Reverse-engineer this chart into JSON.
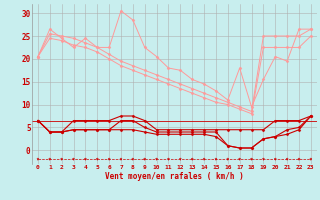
{
  "background_color": "#c8eeee",
  "grid_color": "#b0b0b0",
  "x_labels": [
    "0",
    "1",
    "2",
    "3",
    "4",
    "5",
    "6",
    "7",
    "8",
    "9",
    "10",
    "11",
    "12",
    "13",
    "14",
    "15",
    "16",
    "17",
    "18",
    "19",
    "20",
    "21",
    "22",
    "23"
  ],
  "xlabel": "Vent moyen/en rafales ( km/h )",
  "ylim": [
    -3,
    32
  ],
  "yticks": [
    0,
    5,
    10,
    15,
    20,
    25,
    30
  ],
  "line1": [
    20.5,
    26.5,
    24.5,
    22.5,
    24.5,
    22.5,
    22.5,
    30.5,
    28.5,
    22.5,
    20.5,
    18.0,
    17.5,
    15.5,
    14.5,
    13.0,
    11.0,
    18.0,
    9.5,
    15.5,
    20.5,
    19.5,
    26.5,
    26.5
  ],
  "line2": [
    20.5,
    25.5,
    25.0,
    24.5,
    23.5,
    22.5,
    21.0,
    19.5,
    18.5,
    17.5,
    16.5,
    15.5,
    14.5,
    13.5,
    12.5,
    11.5,
    10.5,
    9.5,
    8.5,
    25.0,
    25.0,
    25.0,
    25.0,
    26.5
  ],
  "line3": [
    20.5,
    24.5,
    24.0,
    23.0,
    22.5,
    21.5,
    20.0,
    18.5,
    17.5,
    16.5,
    15.5,
    14.5,
    13.5,
    12.5,
    11.5,
    10.5,
    10.0,
    9.0,
    8.0,
    22.5,
    22.5,
    22.5,
    22.5,
    25.0
  ],
  "line4": [
    6.5,
    4.0,
    4.0,
    6.5,
    6.5,
    6.5,
    6.5,
    7.5,
    7.5,
    6.5,
    4.5,
    4.5,
    4.5,
    4.5,
    4.5,
    4.5,
    4.5,
    4.5,
    4.5,
    4.5,
    6.5,
    6.5,
    6.5,
    7.5
  ],
  "line5": [
    6.5,
    4.0,
    4.0,
    4.5,
    4.5,
    4.5,
    4.5,
    6.5,
    6.5,
    5.0,
    4.0,
    4.0,
    4.0,
    4.0,
    4.0,
    4.0,
    1.0,
    0.5,
    0.5,
    2.5,
    3.0,
    4.5,
    5.0,
    7.5
  ],
  "line6": [
    6.5,
    4.0,
    4.0,
    4.5,
    4.5,
    4.5,
    4.5,
    4.5,
    4.5,
    4.0,
    3.5,
    3.5,
    3.5,
    3.5,
    3.5,
    3.0,
    1.0,
    0.5,
    0.5,
    2.5,
    3.0,
    3.5,
    4.5,
    7.5
  ],
  "hline_y": 6.5,
  "arrow_color": "#cc0000",
  "light_color": "#ff9999",
  "dark_color": "#cc0000",
  "marker": "D",
  "markersize": 1.5,
  "light_lw": 0.7,
  "dark_lw": 0.8
}
